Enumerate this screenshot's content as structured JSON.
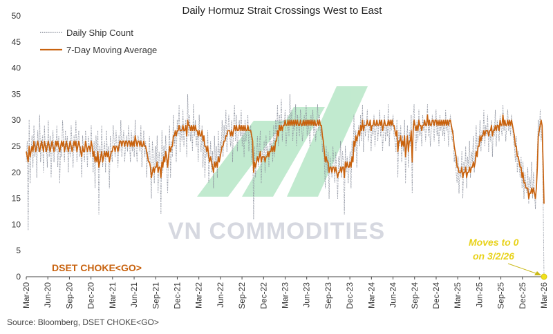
{
  "chart_data": {
    "type": "line",
    "title": "Daily Hormuz Strait Crossings West to East",
    "xlabel": "",
    "ylabel": "",
    "ylim": [
      0,
      50
    ],
    "yticks": [
      0,
      5,
      10,
      15,
      20,
      25,
      30,
      35,
      40,
      45,
      50
    ],
    "grid": false,
    "legend_position": "top-left",
    "x_tick_labels": [
      "Mar-20",
      "Jun-20",
      "Sep-20",
      "Dec-20",
      "Mar-21",
      "Jun-21",
      "Sep-21",
      "Dec-21",
      "Mar-22",
      "Jun-22",
      "Sep-22",
      "Dec-22",
      "Mar-23",
      "Jun-23",
      "Sep-23",
      "Dec-23",
      "Mar-24",
      "Jun-24",
      "Sep-24",
      "Dec-24",
      "Mar-25",
      "Jun-25",
      "Sep-25",
      "Dec-25",
      "Mar-26"
    ],
    "series": [
      {
        "name": "Daily Ship Count",
        "style": "dotted",
        "color": "#8a8f9c",
        "values": [
          22,
          26,
          9,
          30,
          18,
          24,
          27,
          21,
          29,
          23,
          26,
          19,
          28,
          24,
          31,
          22,
          25,
          27,
          20,
          29,
          24,
          26,
          21,
          30,
          23,
          27,
          19,
          25,
          28,
          22,
          26,
          24,
          29,
          21,
          27,
          18,
          25,
          23,
          30,
          26,
          22,
          28,
          24,
          27,
          20,
          26,
          23,
          29,
          25,
          21,
          27,
          24,
          30,
          22,
          26,
          28,
          23,
          25,
          19,
          27,
          24,
          22,
          28,
          26,
          21,
          27,
          25,
          23,
          29,
          24,
          20,
          26,
          17,
          27,
          23,
          28,
          12,
          25,
          22,
          29,
          21,
          24,
          26,
          20,
          28,
          23,
          25,
          17,
          27,
          24,
          22,
          29,
          26,
          23,
          28,
          25,
          21,
          27,
          24,
          30,
          23,
          26,
          28,
          22,
          25,
          27,
          24,
          29,
          26,
          22,
          28,
          24,
          27,
          23,
          30,
          25,
          22,
          27,
          26,
          24,
          29,
          21,
          25,
          28,
          23,
          26,
          19,
          24,
          22,
          27,
          20,
          15,
          26,
          23,
          18,
          25,
          21,
          27,
          16,
          24,
          22,
          12,
          28,
          20,
          25,
          23,
          27,
          21,
          16,
          24,
          29,
          19,
          26,
          23,
          31,
          25,
          28,
          22,
          30,
          27,
          33,
          24,
          29,
          26,
          32,
          25,
          28,
          30,
          23,
          35,
          27,
          31,
          26,
          29,
          24,
          33,
          27,
          30,
          25,
          28,
          22,
          31,
          26,
          24,
          29,
          21,
          27,
          19,
          25,
          23,
          28,
          18,
          22,
          26,
          20,
          24,
          17,
          27,
          21,
          25,
          19,
          28,
          22,
          26,
          24,
          30,
          23,
          29,
          26,
          32,
          24,
          28,
          31,
          27,
          25,
          30,
          22,
          29,
          33,
          26,
          31,
          24,
          28,
          30,
          27,
          32,
          25,
          29,
          23,
          30,
          26,
          28,
          31,
          24,
          27,
          29,
          22,
          26,
          11,
          25,
          19,
          23,
          27,
          21,
          25,
          28,
          18,
          24,
          22,
          26,
          20,
          27,
          23,
          25,
          21,
          28,
          24,
          26,
          22,
          29,
          23,
          30,
          27,
          33,
          25,
          31,
          28,
          34,
          26,
          30,
          29,
          32,
          25,
          28,
          31,
          27,
          35,
          29,
          32,
          26,
          30,
          28,
          33,
          25,
          31,
          29,
          27,
          32,
          30,
          26,
          28,
          31,
          29,
          33,
          27,
          30,
          28,
          25,
          31,
          29,
          32,
          27,
          30,
          26,
          29,
          33,
          28,
          31,
          27,
          29,
          24,
          26,
          22,
          17,
          25,
          20,
          24,
          15,
          23,
          21,
          19,
          25,
          22,
          18,
          24,
          20,
          15,
          23,
          21,
          26,
          19,
          24,
          22,
          12,
          25,
          20,
          23,
          18,
          21,
          24,
          17,
          26,
          22,
          31,
          24,
          28,
          21,
          27,
          29,
          25,
          31,
          26,
          33,
          24,
          30,
          27,
          29,
          32,
          26,
          28,
          30,
          24,
          29,
          27,
          31,
          25,
          28,
          30,
          26,
          29,
          32,
          27,
          30,
          24,
          28,
          31,
          26,
          29,
          27,
          33,
          25,
          30,
          28,
          29,
          31,
          27,
          26,
          24,
          30,
          19,
          28,
          25,
          29,
          22,
          27,
          24,
          30,
          18,
          26,
          29,
          21,
          28,
          25,
          31,
          16,
          30,
          33,
          27,
          24,
          30,
          26,
          32,
          27,
          29,
          25,
          31,
          28,
          30,
          26,
          29,
          33,
          27,
          30,
          25,
          28,
          31,
          29,
          26,
          30,
          32,
          27,
          29,
          25,
          31,
          28,
          30,
          27,
          29,
          26,
          32,
          28,
          30,
          25,
          29,
          31,
          27,
          26,
          28,
          22,
          24,
          20,
          18,
          23,
          16,
          21,
          19,
          24,
          15,
          22,
          20,
          25,
          17,
          23,
          21,
          26,
          19,
          24,
          22,
          27,
          20,
          25,
          29,
          23,
          27,
          25,
          30,
          24,
          28,
          26,
          32,
          25,
          29,
          27,
          31,
          24,
          28,
          26,
          30,
          23,
          29,
          27,
          32,
          25,
          30,
          28,
          26,
          31,
          29,
          27,
          33,
          28,
          30,
          26,
          29,
          32,
          28,
          30,
          27,
          31,
          29,
          26,
          25,
          22,
          27,
          20,
          24,
          21,
          19,
          23,
          17,
          22,
          15,
          20,
          18,
          16,
          21,
          14,
          19,
          17,
          22,
          15,
          20,
          16,
          13,
          18,
          24,
          30,
          27,
          32,
          26,
          29,
          16,
          0
        ]
      },
      {
        "name": "7-Day Moving Average",
        "style": "solid",
        "color": "#c8620e",
        "values": [
          24,
          23,
          22,
          25,
          23,
          24,
          25,
          24,
          26,
          25,
          24,
          25,
          26,
          25,
          24,
          25,
          26,
          25,
          24,
          26,
          25,
          24,
          25,
          26,
          25,
          24,
          25,
          26,
          25,
          24,
          25,
          26,
          25,
          26,
          25,
          24,
          25,
          26,
          25,
          26,
          24,
          25,
          26,
          25,
          24,
          25,
          26,
          25,
          24,
          25,
          26,
          25,
          26,
          24,
          25,
          26,
          25,
          24,
          23,
          25,
          24,
          24,
          26,
          25,
          24,
          25,
          25,
          24,
          26,
          25,
          23,
          24,
          22,
          23,
          22,
          24,
          21,
          22,
          23,
          24,
          22,
          23,
          24,
          23,
          24,
          23,
          24,
          22,
          23,
          24,
          24,
          25,
          25,
          24,
          25,
          25,
          24,
          25,
          26,
          26,
          25,
          26,
          26,
          25,
          26,
          26,
          25,
          26,
          26,
          25,
          26,
          25,
          26,
          25,
          27,
          26,
          25,
          26,
          26,
          25,
          26,
          25,
          25,
          26,
          25,
          25,
          24,
          23,
          22,
          22,
          21,
          19,
          20,
          21,
          20,
          21,
          21,
          22,
          20,
          21,
          21,
          19,
          22,
          21,
          23,
          22,
          24,
          23,
          21,
          23,
          25,
          24,
          25,
          25,
          27,
          27,
          28,
          27,
          28,
          28,
          29,
          28,
          28,
          28,
          29,
          28,
          28,
          29,
          27,
          30,
          29,
          29,
          28,
          29,
          28,
          29,
          28,
          29,
          28,
          28,
          27,
          28,
          27,
          27,
          28,
          26,
          27,
          25,
          25,
          24,
          25,
          23,
          22,
          23,
          22,
          21,
          20,
          22,
          21,
          22,
          21,
          23,
          22,
          23,
          24,
          25,
          25,
          26,
          26,
          27,
          27,
          28,
          28,
          28,
          27,
          28,
          27,
          28,
          29,
          28,
          29,
          28,
          28,
          29,
          28,
          29,
          28,
          29,
          28,
          29,
          28,
          28,
          29,
          28,
          28,
          28,
          27,
          26,
          20,
          22,
          21,
          22,
          23,
          22,
          23,
          24,
          22,
          23,
          23,
          23,
          22,
          23,
          23,
          24,
          23,
          24,
          24,
          25,
          24,
          25,
          24,
          26,
          26,
          28,
          27,
          29,
          28,
          29,
          28,
          29,
          29,
          30,
          29,
          29,
          30,
          29,
          30,
          29,
          30,
          29,
          30,
          29,
          30,
          29,
          30,
          29,
          29,
          30,
          29,
          29,
          30,
          29,
          30,
          29,
          30,
          29,
          30,
          29,
          30,
          29,
          30,
          29,
          30,
          29,
          29,
          30,
          29,
          30,
          29,
          29,
          27,
          26,
          24,
          22,
          23,
          22,
          22,
          20,
          21,
          21,
          20,
          21,
          21,
          20,
          21,
          20,
          19,
          20,
          20,
          21,
          20,
          21,
          21,
          19,
          22,
          21,
          22,
          21,
          21,
          22,
          21,
          23,
          22,
          26,
          25,
          27,
          26,
          27,
          28,
          27,
          29,
          28,
          30,
          28,
          29,
          29,
          29,
          30,
          29,
          29,
          30,
          28,
          29,
          29,
          30,
          29,
          29,
          30,
          29,
          29,
          30,
          29,
          30,
          28,
          29,
          30,
          29,
          29,
          29,
          30,
          29,
          30,
          29,
          30,
          29,
          29,
          28,
          27,
          28,
          24,
          26,
          26,
          27,
          25,
          26,
          25,
          27,
          23,
          25,
          27,
          24,
          26,
          26,
          28,
          22,
          28,
          30,
          29,
          28,
          29,
          28,
          30,
          29,
          29,
          28,
          29,
          29,
          30,
          29,
          29,
          31,
          29,
          30,
          29,
          29,
          30,
          30,
          29,
          30,
          30,
          29,
          30,
          29,
          30,
          29,
          30,
          29,
          30,
          29,
          30,
          29,
          30,
          29,
          30,
          30,
          29,
          28,
          27,
          25,
          24,
          23,
          21,
          21,
          20,
          20,
          20,
          21,
          19,
          20,
          20,
          21,
          19,
          20,
          20,
          21,
          20,
          21,
          21,
          22,
          21,
          22,
          24,
          23,
          25,
          25,
          27,
          26,
          27,
          27,
          28,
          27,
          28,
          28,
          28,
          27,
          28,
          28,
          29,
          27,
          28,
          28,
          29,
          28,
          29,
          29,
          28,
          30,
          29,
          29,
          31,
          29,
          30,
          29,
          29,
          30,
          29,
          30,
          29,
          30,
          29,
          28,
          27,
          25,
          25,
          23,
          23,
          22,
          21,
          21,
          19,
          20,
          18,
          18,
          17,
          17,
          17,
          15,
          16,
          16,
          17,
          16,
          17,
          16,
          15,
          17,
          21,
          27,
          28,
          29,
          30,
          29,
          22,
          14
        ]
      }
    ],
    "annotations": [
      {
        "text": "Moves to 0",
        "target": {
          "x": "3/2/26",
          "y": 0
        }
      },
      {
        "text": "on 3/2/26"
      },
      {
        "text": "DSET CHOKE<GO>"
      }
    ],
    "watermark": "VN COMMODITIES",
    "source": "Source: Bloomberg, DSET CHOKE<GO>",
    "colors": {
      "dotted": "#8a8f9c",
      "average": "#c8620e",
      "highlight": "#f0e11c",
      "choke_label": "#c8620e",
      "watermark_green": "#8fd9a8"
    }
  }
}
